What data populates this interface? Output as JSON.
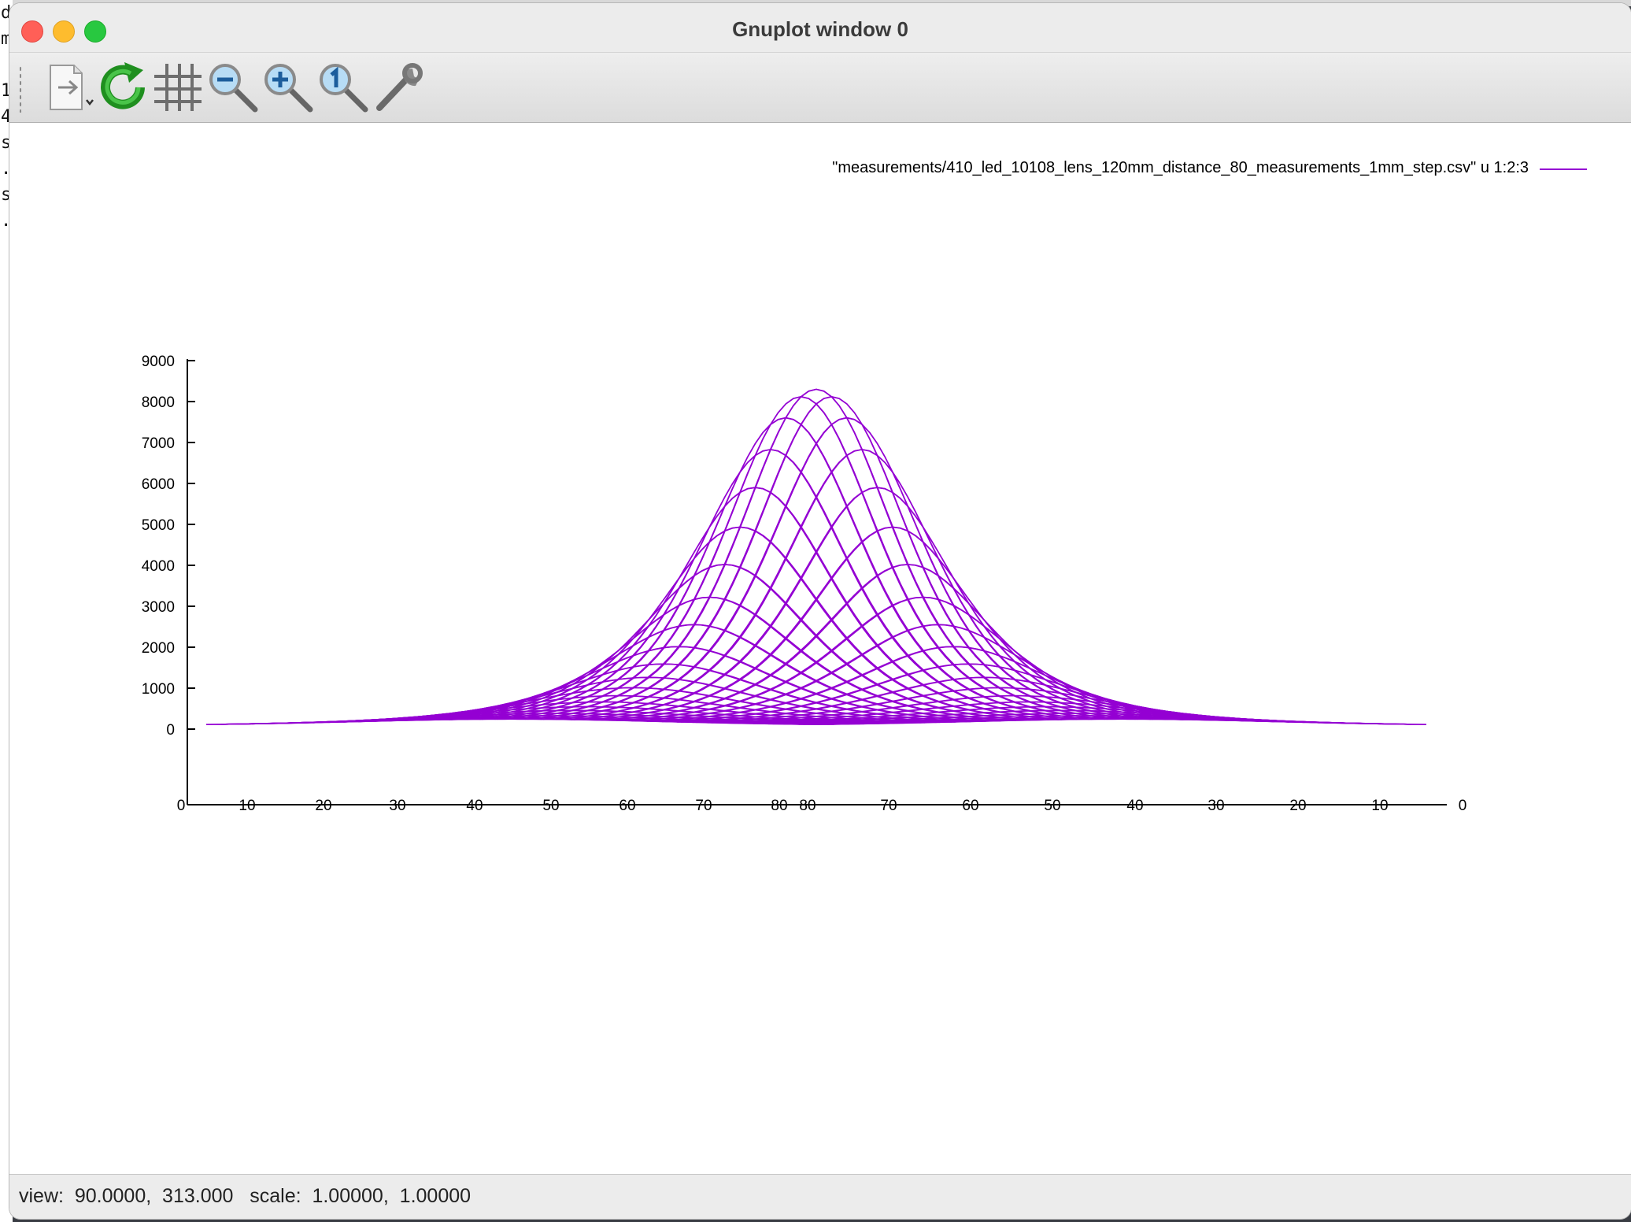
{
  "window": {
    "title": "Gnuplot window 0"
  },
  "background_terminal": {
    "lines": [
      "d",
      "m",
      "",
      "1",
      "4",
      "s",
      ".",
      "s",
      "."
    ]
  },
  "toolbar": {
    "items": [
      {
        "icon": "export-menu-icon"
      },
      {
        "icon": "replot-icon"
      },
      {
        "icon": "grid-icon"
      },
      {
        "icon": "zoom-out-icon"
      },
      {
        "icon": "zoom-in-icon"
      },
      {
        "icon": "zoom-reset-icon"
      },
      {
        "icon": "settings-wrench-icon"
      }
    ]
  },
  "plot": {
    "legend": "\"measurements/410_led_10108_lens_120mm_distance_80_measurements_1mm_step.csv\" u 1:2:3",
    "line_color": "#9400d3"
  },
  "chart_data": {
    "type": "line",
    "view": "3d-projected surface mesh",
    "z_ticks": [
      "9000",
      "8000",
      "7000",
      "6000",
      "5000",
      "4000",
      "3000",
      "2000",
      "1000",
      "0"
    ],
    "zlim": [
      0,
      9000
    ],
    "x_ticks_left": [
      "0",
      "10",
      "20",
      "30",
      "40",
      "50",
      "60",
      "70",
      "80"
    ],
    "x_ticks_right": [
      "80",
      "70",
      "60",
      "50",
      "40",
      "30",
      "20",
      "10",
      "0"
    ],
    "x_range": [
      0,
      80
    ],
    "y_range": [
      0,
      80
    ],
    "peak_value": 8300,
    "peak_position_mm": 40,
    "baseline_value": 60,
    "profile_width_mm": 12,
    "series": [
      {
        "name": "\"measurements/410_led_10108_lens_120mm_distance_80_measurements_1mm_step.csv\" u 1:2:3",
        "color": "#9400d3"
      }
    ]
  },
  "status": {
    "text": "view:  90.0000,  313.000   scale:  1.00000,  1.00000"
  }
}
